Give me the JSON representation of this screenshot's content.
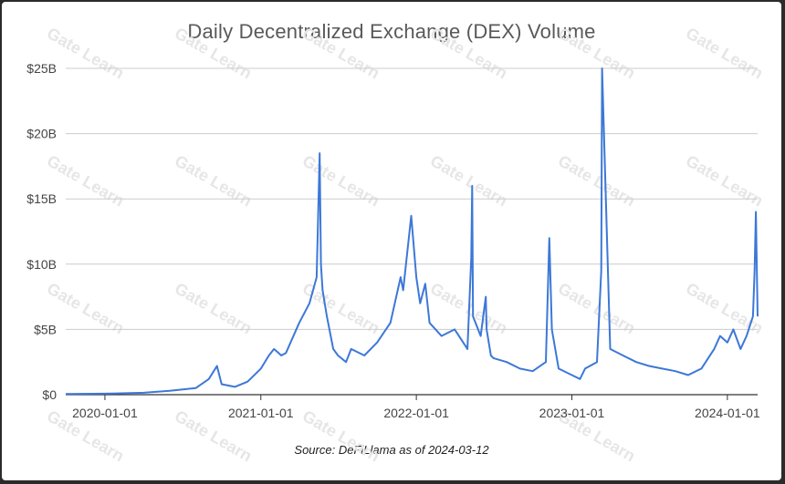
{
  "chart_data": {
    "type": "line",
    "title": "Daily Decentralized Exchange (DEX) Volume",
    "source": "Source: DeFiLlama as of 2024-03-12",
    "watermark": "Gate Learn",
    "y_unit": "USD billions",
    "ylim": [
      0,
      25
    ],
    "y_ticks": [
      {
        "value": 0,
        "label": "$0"
      },
      {
        "value": 5,
        "label": "$5B"
      },
      {
        "value": 10,
        "label": "$10B"
      },
      {
        "value": 15,
        "label": "$15B"
      },
      {
        "value": 20,
        "label": "$20B"
      },
      {
        "value": 25,
        "label": "$25B"
      }
    ],
    "x_ticks": [
      "2020-01-01",
      "2021-01-01",
      "2022-01-01",
      "2023-01-01",
      "2024-01-01"
    ],
    "xlim": [
      "2019-10-01",
      "2024-03-12"
    ],
    "grid": true,
    "color": "#3c78d8",
    "series": [
      {
        "x": [
          "2019-10-01",
          "2020-01-01",
          "2020-04-01",
          "2020-06-01",
          "2020-08-01",
          "2020-09-01",
          "2020-09-20",
          "2020-10-01",
          "2020-11-01",
          "2020-12-01",
          "2021-01-01",
          "2021-01-20",
          "2021-02-01",
          "2021-02-18",
          "2021-03-01",
          "2021-04-01",
          "2021-04-25",
          "2021-05-12",
          "2021-05-19",
          "2021-05-22",
          "2021-05-26",
          "2021-06-05",
          "2021-06-20",
          "2021-07-01",
          "2021-07-20",
          "2021-08-01",
          "2021-09-01",
          "2021-10-01",
          "2021-11-01",
          "2021-11-25",
          "2021-12-01",
          "2021-12-20",
          "2022-01-01",
          "2022-01-10",
          "2022-01-22",
          "2022-02-01",
          "2022-03-01",
          "2022-04-01",
          "2022-05-01",
          "2022-05-10",
          "2022-05-12",
          "2022-05-14",
          "2022-06-01",
          "2022-06-13",
          "2022-06-15",
          "2022-06-25",
          "2022-07-01",
          "2022-08-01",
          "2022-09-01",
          "2022-10-01",
          "2022-11-01",
          "2022-11-09",
          "2022-11-15",
          "2022-12-01",
          "2023-01-01",
          "2023-01-20",
          "2023-02-01",
          "2023-03-01",
          "2023-03-11",
          "2023-03-13",
          "2023-04-01",
          "2023-05-01",
          "2023-06-01",
          "2023-07-01",
          "2023-08-01",
          "2023-09-01",
          "2023-10-01",
          "2023-11-01",
          "2023-12-01",
          "2023-12-15",
          "2024-01-01",
          "2024-01-15",
          "2024-02-01",
          "2024-02-15",
          "2024-03-01",
          "2024-03-05",
          "2024-03-08",
          "2024-03-12"
        ],
        "values": [
          0.05,
          0.08,
          0.15,
          0.3,
          0.5,
          1.2,
          2.2,
          0.8,
          0.6,
          1.0,
          2.0,
          3.0,
          3.5,
          3.0,
          3.2,
          5.5,
          7.0,
          9.0,
          18.5,
          10.0,
          8.0,
          6.0,
          3.5,
          3.0,
          2.5,
          3.5,
          3.0,
          4.0,
          5.5,
          9.0,
          8.0,
          13.7,
          9.0,
          7.0,
          8.5,
          5.5,
          4.5,
          5.0,
          3.5,
          10.5,
          16.0,
          6.0,
          4.5,
          7.5,
          5.0,
          3.0,
          2.8,
          2.5,
          2.0,
          1.8,
          2.5,
          12.0,
          5.0,
          2.0,
          1.5,
          1.2,
          2.0,
          2.5,
          9.5,
          25.0,
          3.5,
          3.0,
          2.5,
          2.2,
          2.0,
          1.8,
          1.5,
          2.0,
          3.5,
          4.5,
          4.0,
          5.0,
          3.5,
          4.5,
          6.0,
          9.5,
          14.0,
          6.0
        ]
      }
    ]
  }
}
